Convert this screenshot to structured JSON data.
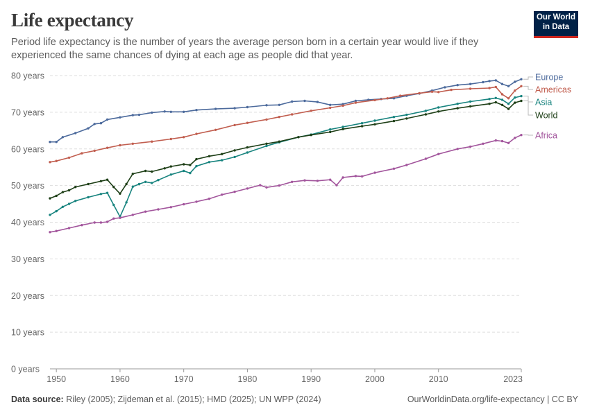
{
  "header": {
    "title": "Life expectancy",
    "subtitle": "Period life expectancy is the number of years the average person born in a certain year would live if they experienced the same chances of dying at each age as people did that year.",
    "logo_line1": "Our World",
    "logo_line2": "in Data"
  },
  "footer": {
    "source_label": "Data source:",
    "source_text": "Riley (2005); Zijdeman et al. (2015); HMD (2025); UN WPP (2024)",
    "link": "OurWorldinData.org/life-expectancy | CC BY"
  },
  "chart_data": {
    "type": "line",
    "title": "Life expectancy",
    "xlim": [
      1949,
      2023
    ],
    "ylim": [
      0,
      80
    ],
    "x_ticks": [
      1950,
      1960,
      1970,
      1980,
      1990,
      2000,
      2010,
      2023
    ],
    "y_ticks": [
      0,
      10,
      20,
      30,
      40,
      50,
      60,
      70,
      80
    ],
    "y_tick_labels": [
      "0 years",
      "10 years",
      "20 years",
      "30 years",
      "40 years",
      "50 years",
      "60 years",
      "70 years",
      "80 years"
    ],
    "grid": "horizontal dashed",
    "legend": "labels at right end of lines",
    "series": [
      {
        "name": "Europe",
        "color": "#4c6a9c",
        "points": [
          [
            1949,
            61.9
          ],
          [
            1950,
            61.9
          ],
          [
            1951,
            63.2
          ],
          [
            1953,
            64.3
          ],
          [
            1955,
            65.6
          ],
          [
            1956,
            66.8
          ],
          [
            1957,
            67.0
          ],
          [
            1958,
            68.0
          ],
          [
            1960,
            68.6
          ],
          [
            1962,
            69.2
          ],
          [
            1963,
            69.3
          ],
          [
            1965,
            69.9
          ],
          [
            1967,
            70.2
          ],
          [
            1968,
            70.1
          ],
          [
            1970,
            70.1
          ],
          [
            1972,
            70.6
          ],
          [
            1975,
            70.9
          ],
          [
            1978,
            71.1
          ],
          [
            1980,
            71.4
          ],
          [
            1983,
            71.9
          ],
          [
            1985,
            72.0
          ],
          [
            1987,
            72.9
          ],
          [
            1989,
            73.1
          ],
          [
            1991,
            72.8
          ],
          [
            1993,
            72.0
          ],
          [
            1995,
            72.2
          ],
          [
            1997,
            73.1
          ],
          [
            1999,
            73.4
          ],
          [
            2001,
            73.6
          ],
          [
            2003,
            73.8
          ],
          [
            2005,
            74.5
          ],
          [
            2007,
            75.1
          ],
          [
            2009,
            75.9
          ],
          [
            2011,
            76.8
          ],
          [
            2013,
            77.4
          ],
          [
            2015,
            77.7
          ],
          [
            2017,
            78.2
          ],
          [
            2018,
            78.5
          ],
          [
            2019,
            78.7
          ],
          [
            2020,
            77.7
          ],
          [
            2021,
            77.1
          ],
          [
            2022,
            78.3
          ],
          [
            2023,
            79.0
          ]
        ]
      },
      {
        "name": "Americas",
        "color": "#c15e4f",
        "points": [
          [
            1949,
            56.4
          ],
          [
            1950,
            56.7
          ],
          [
            1952,
            57.6
          ],
          [
            1954,
            58.8
          ],
          [
            1956,
            59.5
          ],
          [
            1958,
            60.3
          ],
          [
            1960,
            61.0
          ],
          [
            1962,
            61.4
          ],
          [
            1965,
            62.0
          ],
          [
            1968,
            62.7
          ],
          [
            1970,
            63.2
          ],
          [
            1972,
            64.1
          ],
          [
            1975,
            65.2
          ],
          [
            1978,
            66.5
          ],
          [
            1980,
            67.1
          ],
          [
            1983,
            68.0
          ],
          [
            1985,
            68.7
          ],
          [
            1987,
            69.4
          ],
          [
            1990,
            70.4
          ],
          [
            1993,
            71.2
          ],
          [
            1995,
            71.8
          ],
          [
            1997,
            72.6
          ],
          [
            2000,
            73.3
          ],
          [
            2002,
            73.8
          ],
          [
            2004,
            74.5
          ],
          [
            2007,
            75.2
          ],
          [
            2009,
            75.6
          ],
          [
            2010,
            75.5
          ],
          [
            2012,
            76.1
          ],
          [
            2015,
            76.4
          ],
          [
            2018,
            76.6
          ],
          [
            2019,
            76.9
          ],
          [
            2020,
            74.9
          ],
          [
            2021,
            73.8
          ],
          [
            2022,
            75.9
          ],
          [
            2023,
            77.1
          ]
        ]
      },
      {
        "name": "Asia",
        "color": "#18847f",
        "points": [
          [
            1949,
            42.0
          ],
          [
            1950,
            43.0
          ],
          [
            1951,
            44.2
          ],
          [
            1952,
            45.0
          ],
          [
            1953,
            45.8
          ],
          [
            1955,
            46.8
          ],
          [
            1957,
            47.7
          ],
          [
            1958,
            48.0
          ],
          [
            1959,
            44.7
          ],
          [
            1960,
            41.5
          ],
          [
            1961,
            45.4
          ],
          [
            1962,
            49.7
          ],
          [
            1963,
            50.4
          ],
          [
            1964,
            51.0
          ],
          [
            1965,
            50.7
          ],
          [
            1966,
            51.5
          ],
          [
            1968,
            53.0
          ],
          [
            1970,
            54.0
          ],
          [
            1971,
            53.4
          ],
          [
            1972,
            55.3
          ],
          [
            1974,
            56.4
          ],
          [
            1976,
            56.9
          ],
          [
            1978,
            57.8
          ],
          [
            1980,
            59.0
          ],
          [
            1983,
            60.8
          ],
          [
            1985,
            61.8
          ],
          [
            1988,
            63.2
          ],
          [
            1990,
            63.9
          ],
          [
            1993,
            65.3
          ],
          [
            1995,
            66.0
          ],
          [
            1998,
            67.0
          ],
          [
            2000,
            67.7
          ],
          [
            2003,
            68.7
          ],
          [
            2005,
            69.3
          ],
          [
            2008,
            70.4
          ],
          [
            2010,
            71.3
          ],
          [
            2013,
            72.3
          ],
          [
            2015,
            72.9
          ],
          [
            2018,
            73.6
          ],
          [
            2019,
            73.9
          ],
          [
            2020,
            73.4
          ],
          [
            2021,
            72.3
          ],
          [
            2022,
            74.0
          ],
          [
            2023,
            74.4
          ]
        ]
      },
      {
        "name": "World",
        "color": "#1e3f17",
        "points": [
          [
            1949,
            46.5
          ],
          [
            1950,
            47.2
          ],
          [
            1951,
            48.2
          ],
          [
            1952,
            48.7
          ],
          [
            1953,
            49.6
          ],
          [
            1955,
            50.4
          ],
          [
            1957,
            51.2
          ],
          [
            1958,
            51.6
          ],
          [
            1959,
            49.6
          ],
          [
            1960,
            47.8
          ],
          [
            1961,
            50.4
          ],
          [
            1962,
            53.2
          ],
          [
            1964,
            54.0
          ],
          [
            1965,
            53.8
          ],
          [
            1967,
            54.7
          ],
          [
            1968,
            55.2
          ],
          [
            1970,
            55.8
          ],
          [
            1971,
            55.6
          ],
          [
            1972,
            57.2
          ],
          [
            1974,
            58.0
          ],
          [
            1976,
            58.6
          ],
          [
            1978,
            59.6
          ],
          [
            1980,
            60.4
          ],
          [
            1983,
            61.4
          ],
          [
            1985,
            62.0
          ],
          [
            1988,
            63.2
          ],
          [
            1990,
            63.8
          ],
          [
            1993,
            64.6
          ],
          [
            1995,
            65.4
          ],
          [
            1998,
            66.2
          ],
          [
            2000,
            66.7
          ],
          [
            2003,
            67.6
          ],
          [
            2005,
            68.3
          ],
          [
            2008,
            69.4
          ],
          [
            2010,
            70.2
          ],
          [
            2013,
            71.1
          ],
          [
            2015,
            71.6
          ],
          [
            2018,
            72.3
          ],
          [
            2019,
            72.7
          ],
          [
            2020,
            72.0
          ],
          [
            2021,
            70.9
          ],
          [
            2022,
            72.6
          ],
          [
            2023,
            73.1
          ]
        ]
      },
      {
        "name": "Africa",
        "color": "#a2559c",
        "points": [
          [
            1949,
            37.3
          ],
          [
            1950,
            37.6
          ],
          [
            1952,
            38.4
          ],
          [
            1954,
            39.2
          ],
          [
            1956,
            39.9
          ],
          [
            1957,
            39.9
          ],
          [
            1958,
            40.1
          ],
          [
            1959,
            41.0
          ],
          [
            1960,
            41.2
          ],
          [
            1962,
            42.0
          ],
          [
            1964,
            42.9
          ],
          [
            1966,
            43.5
          ],
          [
            1968,
            44.1
          ],
          [
            1970,
            44.9
          ],
          [
            1972,
            45.6
          ],
          [
            1974,
            46.4
          ],
          [
            1976,
            47.5
          ],
          [
            1978,
            48.3
          ],
          [
            1980,
            49.2
          ],
          [
            1982,
            50.1
          ],
          [
            1983,
            49.5
          ],
          [
            1985,
            50.0
          ],
          [
            1987,
            51.0
          ],
          [
            1989,
            51.4
          ],
          [
            1991,
            51.3
          ],
          [
            1993,
            51.6
          ],
          [
            1994,
            50.1
          ],
          [
            1995,
            52.2
          ],
          [
            1997,
            52.6
          ],
          [
            1998,
            52.5
          ],
          [
            2000,
            53.5
          ],
          [
            2003,
            54.6
          ],
          [
            2005,
            55.6
          ],
          [
            2008,
            57.3
          ],
          [
            2010,
            58.6
          ],
          [
            2013,
            60.0
          ],
          [
            2015,
            60.6
          ],
          [
            2017,
            61.4
          ],
          [
            2019,
            62.3
          ],
          [
            2020,
            62.1
          ],
          [
            2021,
            61.6
          ],
          [
            2022,
            63.0
          ],
          [
            2023,
            63.8
          ]
        ]
      }
    ]
  }
}
